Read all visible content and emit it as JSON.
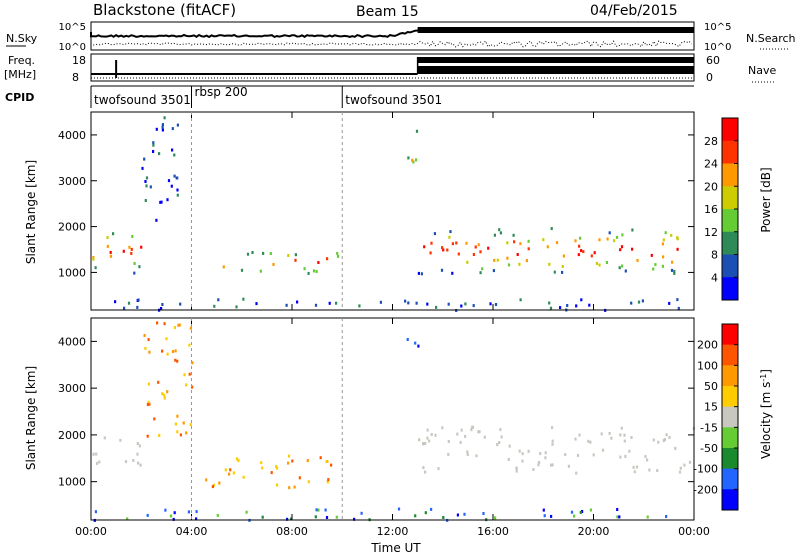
{
  "header": {
    "station": "Blackstone (fitACF)",
    "beam": "Beam 15",
    "date": "04/Feb/2015"
  },
  "status_panel": {
    "left_labels": {
      "nsky": "N.Sky",
      "freq": "Freq.",
      "freq_unit": "[MHz]",
      "cpid": "CPID"
    },
    "right_labels": {
      "nsearch": "N.Search",
      "nave": "Nave"
    },
    "noise_left_ticks": [
      "10^5",
      "10^0"
    ],
    "noise_right_ticks": [
      "10^5",
      "10^0"
    ],
    "freq_left_ticks": [
      "18",
      "8"
    ],
    "nave_right_ticks": [
      "60",
      "0"
    ],
    "cpid_segments": [
      {
        "label": "twofsound 3501",
        "start_hour": 0.0
      },
      {
        "label": "rbsp 200",
        "start_hour": 4.0
      },
      {
        "label": "twofsound 3501",
        "start_hour": 10.0
      }
    ]
  },
  "chart_data": [
    {
      "type": "heatmap",
      "name": "power",
      "ylabel": "Slant Range [km]",
      "xlim": [
        0,
        24
      ],
      "ylim": [
        180,
        4500
      ],
      "yticks": [
        1000,
        2000,
        3000,
        4000
      ],
      "colorbar": {
        "label": "Power [dB]",
        "ticks": [
          "4",
          "8",
          "12",
          "16",
          "20",
          "24",
          "28"
        ],
        "colors": [
          "#0000ff",
          "#1b4fb4",
          "#2e8b57",
          "#66cc33",
          "#cccc00",
          "#ff9900",
          "#ff3300",
          "#ff0000"
        ]
      },
      "scatter_bands": [
        {
          "t0": 0.0,
          "t1": 2.0,
          "r0": 1000,
          "r1": 2000,
          "level": "high"
        },
        {
          "t0": 5.2,
          "t1": 9.8,
          "r0": 1000,
          "r1": 1500,
          "level": "high"
        },
        {
          "t0": 13.0,
          "t1": 24.0,
          "r0": 1000,
          "r1": 2000,
          "level": "high"
        },
        {
          "t0": 0.0,
          "t1": 24.0,
          "r0": 200,
          "r1": 450,
          "level": "low"
        },
        {
          "t0": 2.0,
          "t1": 3.5,
          "r0": 2000,
          "r1": 4500,
          "level": "low"
        },
        {
          "t0": 12.5,
          "t1": 13.0,
          "r0": 3000,
          "r1": 4200,
          "level": "mid"
        }
      ]
    },
    {
      "type": "heatmap",
      "name": "velocity",
      "ylabel": "Slant Range [km]",
      "xlabel": "Time UT",
      "xlim": [
        0,
        24
      ],
      "ylim": [
        180,
        4500
      ],
      "yticks": [
        1000,
        2000,
        3000,
        4000
      ],
      "xticks": [
        "00:00",
        "04:00",
        "08:00",
        "12:00",
        "16:00",
        "20:00",
        "00:00"
      ],
      "colorbar": {
        "label": "Velocity [m s^-1]",
        "ticks": [
          "200",
          "100",
          "50",
          "15",
          "-15",
          "-50",
          "-100",
          "-200"
        ],
        "colors": [
          "#0000ff",
          "#2266ff",
          "#1a8a2e",
          "#66cc33",
          "#c8c8c0",
          "#ffcc00",
          "#ff9900",
          "#ff5500",
          "#ff0000"
        ]
      },
      "scatter_bands": [
        {
          "t0": 0.0,
          "t1": 2.0,
          "r0": 1200,
          "r1": 2000,
          "level": "slow"
        },
        {
          "t0": 4.5,
          "t1": 9.8,
          "r0": 900,
          "r1": 1600,
          "level": "away"
        },
        {
          "t0": 13.0,
          "t1": 24.0,
          "r0": 1200,
          "r1": 2200,
          "level": "slow"
        },
        {
          "t0": 0.0,
          "t1": 24.0,
          "r0": 200,
          "r1": 450,
          "level": "toward"
        },
        {
          "t0": 2.0,
          "t1": 4.0,
          "r0": 2000,
          "r1": 4500,
          "level": "away"
        },
        {
          "t0": 12.5,
          "t1": 13.0,
          "r0": 3500,
          "r1": 4200,
          "level": "toward"
        }
      ]
    }
  ]
}
